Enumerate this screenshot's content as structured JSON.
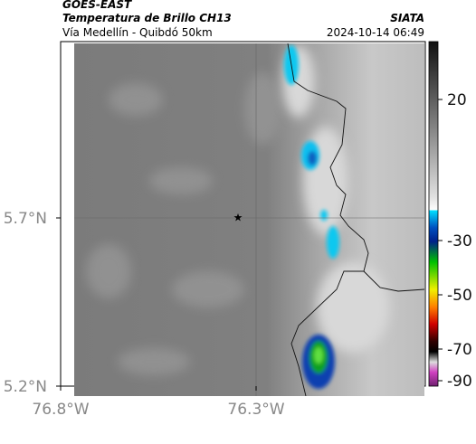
{
  "header": {
    "title": "GOES-EAST",
    "subtitle": "Temperatura de Brillo CH13",
    "source": "SIATA",
    "region": "Vía Medellín - Quibdó 50km",
    "timestamp": "2024-10-14 06:49"
  },
  "axes": {
    "lat_ticks": [
      {
        "value": 5.7,
        "label": "5.7°N"
      },
      {
        "value": 5.2,
        "label": "5.2°N"
      }
    ],
    "lon_ticks": [
      {
        "value": -76.8,
        "label": "76.8°W"
      },
      {
        "value": -76.3,
        "label": "76.3°W"
      }
    ]
  },
  "colorbar": {
    "ticks": [
      20,
      -30,
      -50,
      -70,
      -90
    ]
  }
}
